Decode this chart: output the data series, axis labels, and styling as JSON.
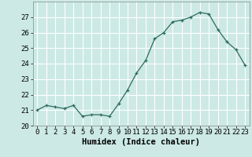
{
  "x": [
    0,
    1,
    2,
    3,
    4,
    5,
    6,
    7,
    8,
    9,
    10,
    11,
    12,
    13,
    14,
    15,
    16,
    17,
    18,
    19,
    20,
    21,
    22,
    23
  ],
  "y": [
    21.0,
    21.3,
    21.2,
    21.1,
    21.3,
    20.6,
    20.7,
    20.7,
    20.6,
    21.4,
    22.3,
    23.4,
    24.2,
    25.6,
    26.0,
    26.7,
    26.8,
    27.0,
    27.3,
    27.2,
    26.2,
    25.4,
    24.9,
    23.9
  ],
  "xlabel": "Humidex (Indice chaleur)",
  "ylim": [
    20,
    28
  ],
  "xlim": [
    -0.5,
    23.5
  ],
  "yticks": [
    20,
    21,
    22,
    23,
    24,
    25,
    26,
    27
  ],
  "xticks": [
    0,
    1,
    2,
    3,
    4,
    5,
    6,
    7,
    8,
    9,
    10,
    11,
    12,
    13,
    14,
    15,
    16,
    17,
    18,
    19,
    20,
    21,
    22,
    23
  ],
  "line_color": "#2e6b5e",
  "marker": "+",
  "bg_color": "#cce9e5",
  "grid_color": "#ffffff",
  "tick_fontsize": 6.5,
  "xlabel_fontsize": 7.5,
  "xlabel_fontweight": "bold"
}
